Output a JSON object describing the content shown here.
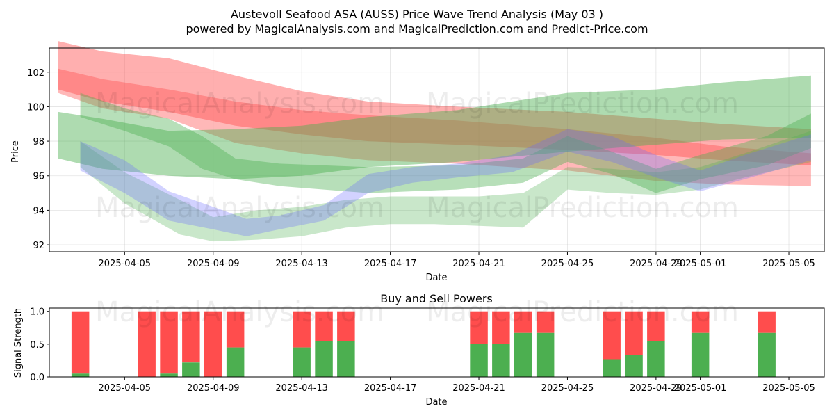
{
  "title_line1": "Austevoll Seafood ASA (AUSS) Price Wave Trend Analysis (May 03 )",
  "title_line2": "powered by MagicalAnalysis.com and MagicalPrediction.com and Predict-Price.com",
  "watermarks": [
    "MagicalAnalysis.com",
    "MagicalPrediction.com"
  ],
  "chart_data": [
    {
      "type": "area",
      "xlabel": "Date",
      "ylabel": "Price",
      "ylim": [
        91.6,
        103.4
      ],
      "xlim": [
        1.6,
        36.6
      ],
      "yticks": [
        92,
        94,
        96,
        98,
        100,
        102
      ],
      "xticks": [
        {
          "day": 5,
          "label": "2025-04-05"
        },
        {
          "day": 9,
          "label": "2025-04-09"
        },
        {
          "day": 13,
          "label": "2025-04-13"
        },
        {
          "day": 17,
          "label": "2025-04-17"
        },
        {
          "day": 21,
          "label": "2025-04-21"
        },
        {
          "day": 25,
          "label": "2025-04-25"
        },
        {
          "day": 29,
          "label": "2025-04-29"
        },
        {
          "day": 31,
          "label": "2025-05-01"
        },
        {
          "day": 35,
          "label": "2025-05-05"
        }
      ],
      "bands": [
        {
          "name": "red-upper",
          "color": "#ff4d4d",
          "opacity": 0.45,
          "x": [
            2,
            4,
            7,
            10,
            13,
            16,
            20,
            25,
            29,
            32,
            36
          ],
          "low": [
            101.0,
            100.3,
            99.7,
            98.9,
            98.4,
            98.0,
            97.8,
            97.5,
            97.2,
            96.9,
            96.6
          ],
          "high": [
            103.8,
            103.2,
            102.8,
            101.8,
            100.9,
            100.3,
            100.0,
            99.7,
            99.3,
            99.0,
            98.7
          ]
        },
        {
          "name": "red-lower",
          "color": "#ff4d4d",
          "opacity": 0.4,
          "x": [
            2,
            4,
            7,
            10,
            13,
            16,
            20,
            25,
            29,
            32,
            36
          ],
          "low": [
            100.8,
            99.9,
            99.3,
            97.9,
            97.3,
            96.9,
            96.7,
            96.3,
            95.7,
            95.5,
            95.4
          ],
          "high": [
            102.2,
            101.6,
            101.0,
            100.3,
            99.8,
            99.5,
            99.2,
            98.7,
            98.2,
            97.7,
            97.3
          ]
        },
        {
          "name": "green-wide",
          "color": "#4caf50",
          "opacity": 0.45,
          "x": [
            2,
            4,
            7,
            10,
            13,
            16,
            20,
            25,
            29,
            32,
            36
          ],
          "low": [
            97.0,
            96.4,
            96.0,
            95.8,
            96.0,
            96.5,
            96.8,
            97.4,
            97.8,
            98.1,
            98.2
          ],
          "high": [
            99.7,
            99.3,
            98.6,
            98.7,
            98.9,
            99.4,
            99.8,
            100.8,
            101.0,
            101.4,
            101.8
          ]
        },
        {
          "name": "green-upper-curve",
          "color": "#4caf50",
          "opacity": 0.4,
          "x": [
            3,
            5,
            7,
            8.5,
            10,
            12,
            16,
            20,
            23,
            25,
            27,
            29,
            31,
            34,
            36
          ],
          "low": [
            99.4,
            98.6,
            97.7,
            96.4,
            95.8,
            95.4,
            95.0,
            95.2,
            95.6,
            96.8,
            96.1,
            95.0,
            95.8,
            96.6,
            97.6
          ],
          "high": [
            100.8,
            99.9,
            99.3,
            98.3,
            97.0,
            96.7,
            96.5,
            96.6,
            97.0,
            98.3,
            97.4,
            96.4,
            97.2,
            98.3,
            99.6
          ]
        },
        {
          "name": "green-low-curve",
          "color": "#4caf50",
          "opacity": 0.3,
          "x": [
            3,
            5,
            7.5,
            9,
            11,
            13,
            15,
            17,
            19,
            21,
            23,
            25,
            27,
            29,
            31,
            33,
            36
          ],
          "low": [
            96.5,
            94.4,
            92.6,
            92.2,
            92.3,
            92.5,
            93.0,
            93.2,
            93.2,
            93.1,
            93.0,
            95.2,
            95.0,
            94.9,
            95.2,
            95.9,
            96.8
          ],
          "high": [
            98.0,
            96.2,
            94.6,
            93.6,
            94.0,
            94.2,
            94.6,
            94.8,
            94.8,
            94.8,
            95.0,
            96.5,
            96.4,
            96.2,
            96.5,
            97.3,
            98.6
          ]
        },
        {
          "name": "blue-curve",
          "color": "#6b6bff",
          "opacity": 0.3,
          "x": [
            3,
            5,
            7,
            9,
            10.5,
            12,
            14,
            16,
            18,
            20,
            22.5,
            25,
            27,
            29,
            31,
            33,
            36
          ],
          "low": [
            96.3,
            95.0,
            93.4,
            92.9,
            92.5,
            92.9,
            93.4,
            95.0,
            95.6,
            95.9,
            96.2,
            97.4,
            96.8,
            95.9,
            95.1,
            95.8,
            96.9
          ],
          "high": [
            98.0,
            96.9,
            95.1,
            94.2,
            93.5,
            93.7,
            94.3,
            96.1,
            96.5,
            96.7,
            97.2,
            98.7,
            98.3,
            97.2,
            96.3,
            97.2,
            98.4
          ]
        }
      ]
    },
    {
      "type": "bar",
      "title": "Buy and Sell Powers",
      "xlabel": "Date",
      "ylabel": "Signal Strength",
      "ylim": [
        0,
        1.05
      ],
      "yticks": [
        0.0,
        0.5,
        1.0
      ],
      "ytick_labels": [
        "0.0",
        "0.5",
        "1.0"
      ],
      "xticks": [
        {
          "day": 5,
          "label": "2025-04-05"
        },
        {
          "day": 9,
          "label": "2025-04-09"
        },
        {
          "day": 13,
          "label": "2025-04-13"
        },
        {
          "day": 17,
          "label": "2025-04-17"
        },
        {
          "day": 21,
          "label": "2025-04-21"
        },
        {
          "day": 25,
          "label": "2025-04-25"
        },
        {
          "day": 29,
          "label": "2025-04-29"
        },
        {
          "day": 31,
          "label": "2025-05-01"
        },
        {
          "day": 35,
          "label": "2025-05-05"
        }
      ],
      "series": [
        {
          "name": "Buy",
          "color": "#4caf50"
        },
        {
          "name": "Sell",
          "color": "#ff4d4d"
        }
      ],
      "bars": [
        {
          "day": 3,
          "buy": 0.05
        },
        {
          "day": 6,
          "buy": 0.0
        },
        {
          "day": 7,
          "buy": 0.05
        },
        {
          "day": 8,
          "buy": 0.22
        },
        {
          "day": 9,
          "buy": 0.0
        },
        {
          "day": 10,
          "buy": 0.45
        },
        {
          "day": 13,
          "buy": 0.45
        },
        {
          "day": 14,
          "buy": 0.55
        },
        {
          "day": 15,
          "buy": 0.55
        },
        {
          "day": 21,
          "buy": 0.5
        },
        {
          "day": 22,
          "buy": 0.5
        },
        {
          "day": 23,
          "buy": 0.67
        },
        {
          "day": 24,
          "buy": 0.67
        },
        {
          "day": 27,
          "buy": 0.27
        },
        {
          "day": 28,
          "buy": 0.33
        },
        {
          "day": 29,
          "buy": 0.55
        },
        {
          "day": 31,
          "buy": 0.67
        },
        {
          "day": 34,
          "buy": 0.67
        }
      ],
      "bar_total": 1.0
    }
  ]
}
